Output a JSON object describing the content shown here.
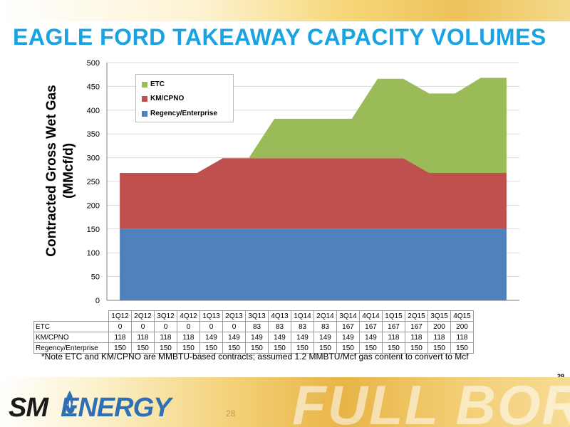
{
  "slide": {
    "title": "EAGLE FORD TAKEAWAY CAPACITY VOLUMES",
    "note": "*Note ETC and KM/CPNO are MMBTU-based contracts; assumed 1.2 MMBTU/Mcf gas content to convert to Mcf",
    "page_number": "28",
    "footer_page_number": "28",
    "logo_sm": "SM",
    "logo_energy": "ENERGY",
    "footer_brand": "FULL BORE"
  },
  "chart_data": {
    "type": "area",
    "stacked": true,
    "title": "",
    "xlabel": "",
    "ylabel": "Contracted Gross Wet Gas (MMcf/d)",
    "ylabel_lines": [
      "Contracted Gross Wet Gas",
      "(MMcf/d)"
    ],
    "ylim": [
      0,
      500
    ],
    "yticks": [
      0,
      50,
      100,
      150,
      200,
      250,
      300,
      350,
      400,
      450,
      500
    ],
    "legend_position": "top-left",
    "categories": [
      "1Q12",
      "2Q12",
      "3Q12",
      "4Q12",
      "1Q13",
      "2Q13",
      "3Q13",
      "4Q13",
      "1Q14",
      "2Q14",
      "3Q14",
      "4Q14",
      "1Q15",
      "2Q15",
      "3Q15",
      "4Q15"
    ],
    "series": [
      {
        "name": "Regency/Enterprise",
        "color": "#4f81bd",
        "values": [
          150,
          150,
          150,
          150,
          150,
          150,
          150,
          150,
          150,
          150,
          150,
          150,
          150,
          150,
          150,
          150
        ]
      },
      {
        "name": "KM/CPNO",
        "color": "#c0504d",
        "values": [
          118,
          118,
          118,
          118,
          149,
          149,
          149,
          149,
          149,
          149,
          149,
          149,
          118,
          118,
          118,
          118
        ]
      },
      {
        "name": "ETC",
        "color": "#9bbb59",
        "values": [
          0,
          0,
          0,
          0,
          0,
          0,
          83,
          83,
          83,
          83,
          167,
          167,
          167,
          167,
          200,
          200
        ]
      }
    ],
    "legend_order": [
      "ETC",
      "KM/CPNO",
      "Regency/Enterprise"
    ],
    "table_row_order": [
      "ETC",
      "KM/CPNO",
      "Regency/Enterprise"
    ]
  }
}
